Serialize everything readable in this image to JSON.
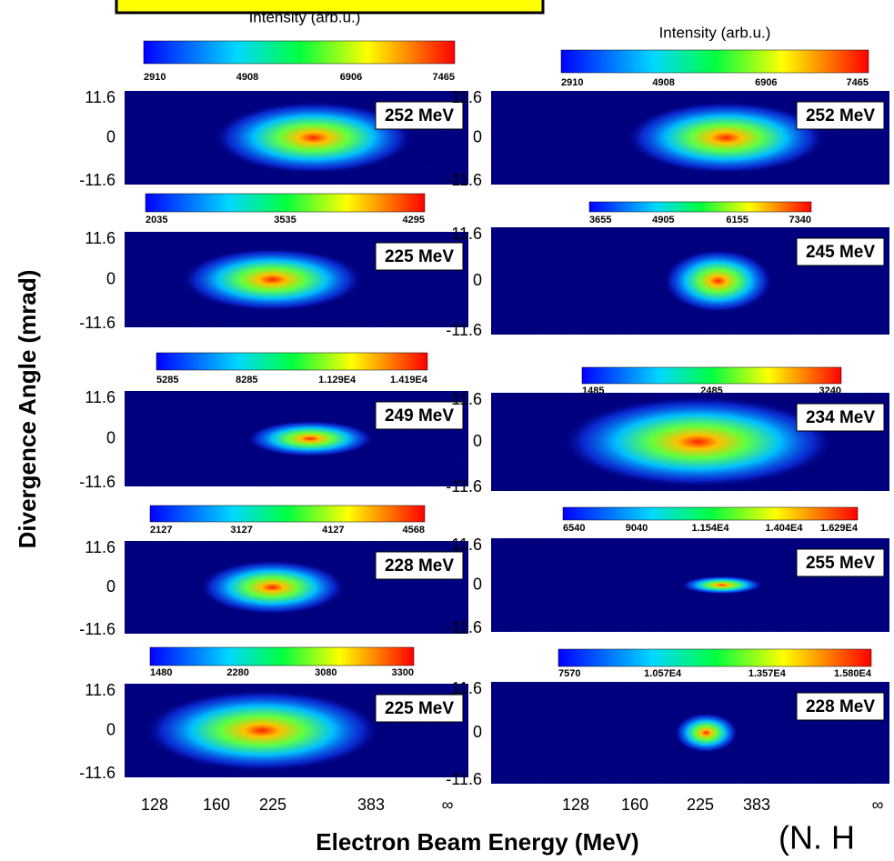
{
  "colorbar_titles": [
    "Intensity (arb.u.)",
    "Intensity (arb.u.)"
  ],
  "y_axis_label": "Divergence Angle (mrad)",
  "x_axis_label": "Electron Beam Energy (MeV)",
  "citation": "(N. H",
  "y_ticks": [
    "11.6",
    "0",
    "-11.6"
  ],
  "x_ticks": [
    "128",
    "160",
    "225",
    "383",
    "∞"
  ],
  "left_column": [
    {
      "colorbar_ticks": [
        "2910",
        "4908",
        "6906",
        "7465"
      ],
      "energy": "252 MeV"
    },
    {
      "colorbar_ticks": [
        "2035",
        "3535",
        "4295"
      ],
      "energy": "225 MeV"
    },
    {
      "colorbar_ticks": [
        "5285",
        "8285",
        "1.129E4",
        "1.419E4"
      ],
      "energy": "249 MeV"
    },
    {
      "colorbar_ticks": [
        "2127",
        "3127",
        "4127",
        "4568"
      ],
      "energy": "228 MeV"
    },
    {
      "colorbar_ticks": [
        "1480",
        "2280",
        "3080",
        "3300"
      ],
      "energy": "225 MeV"
    }
  ],
  "right_column": [
    {
      "colorbar_ticks": [
        "2910",
        "4908",
        "6906",
        "7465"
      ],
      "energy": "252 MeV"
    },
    {
      "colorbar_ticks": [
        "3655",
        "4905",
        "6155",
        "7340"
      ],
      "energy": "245 MeV"
    },
    {
      "colorbar_ticks": [
        "1485",
        "2485",
        "3240"
      ],
      "energy": "234 MeV"
    },
    {
      "colorbar_ticks": [
        "6540",
        "9040",
        "1.154E4",
        "1.404E4",
        "1.629E4"
      ],
      "energy": "255 MeV"
    },
    {
      "colorbar_ticks": [
        "7570",
        "1.057E4",
        "1.357E4",
        "1.580E4"
      ],
      "energy": "228 MeV"
    }
  ]
}
